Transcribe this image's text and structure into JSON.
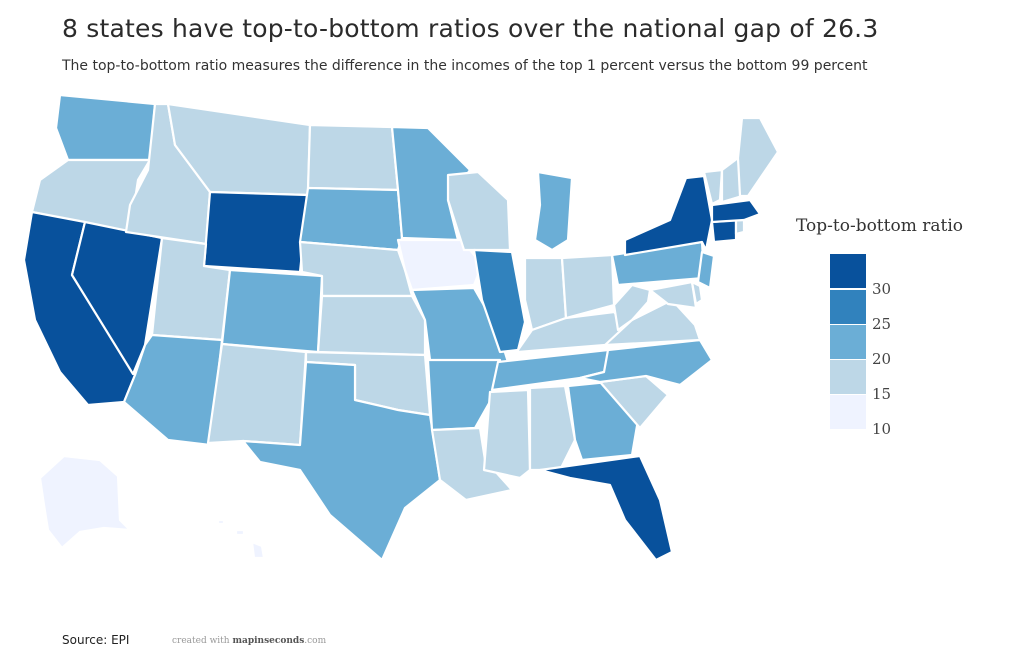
{
  "title": "8 states have top-to-bottom ratios over the national gap of 26.3",
  "subtitle": "The top-to-bottom ratio measures the difference in the incomes of the top 1 percent versus the bottom 99 percent",
  "legend": {
    "title": "Top-to-bottom ratio",
    "ticks": [
      "30",
      "25",
      "20",
      "15",
      "10"
    ],
    "colors": [
      "#08519c",
      "#3182bd",
      "#6baed6",
      "#bdd7e7",
      "#eff3ff"
    ]
  },
  "colors": {
    "c10": "#eff3ff",
    "c15": "#bdd7e7",
    "c20": "#6baed6",
    "c25": "#3182bd",
    "c30": "#08519c"
  },
  "states": [
    {
      "name": "Washington",
      "class": 20
    },
    {
      "name": "Oregon",
      "class": 15
    },
    {
      "name": "California",
      "class": 30
    },
    {
      "name": "Nevada",
      "class": 30
    },
    {
      "name": "Idaho",
      "class": 15
    },
    {
      "name": "Montana",
      "class": 15
    },
    {
      "name": "Wyoming",
      "class": 30
    },
    {
      "name": "Utah",
      "class": 15
    },
    {
      "name": "Arizona",
      "class": 20
    },
    {
      "name": "Colorado",
      "class": 20
    },
    {
      "name": "New Mexico",
      "class": 15
    },
    {
      "name": "North Dakota",
      "class": 15
    },
    {
      "name": "South Dakota",
      "class": 20
    },
    {
      "name": "Nebraska",
      "class": 15
    },
    {
      "name": "Kansas",
      "class": 15
    },
    {
      "name": "Oklahoma",
      "class": 15
    },
    {
      "name": "Texas",
      "class": 20
    },
    {
      "name": "Minnesota",
      "class": 20
    },
    {
      "name": "Iowa",
      "class": 10
    },
    {
      "name": "Missouri",
      "class": 20
    },
    {
      "name": "Arkansas",
      "class": 20
    },
    {
      "name": "Louisiana",
      "class": 15
    },
    {
      "name": "Wisconsin",
      "class": 15
    },
    {
      "name": "Illinois",
      "class": 25
    },
    {
      "name": "Michigan",
      "class": 20
    },
    {
      "name": "Indiana",
      "class": 15
    },
    {
      "name": "Ohio",
      "class": 15
    },
    {
      "name": "Kentucky",
      "class": 15
    },
    {
      "name": "Tennessee",
      "class": 20
    },
    {
      "name": "Mississippi",
      "class": 15
    },
    {
      "name": "Alabama",
      "class": 15
    },
    {
      "name": "Georgia",
      "class": 20
    },
    {
      "name": "Florida",
      "class": 30
    },
    {
      "name": "South Carolina",
      "class": 15
    },
    {
      "name": "North Carolina",
      "class": 20
    },
    {
      "name": "Virginia",
      "class": 15
    },
    {
      "name": "West Virginia",
      "class": 15
    },
    {
      "name": "Pennsylvania",
      "class": 20
    },
    {
      "name": "New York",
      "class": 30
    },
    {
      "name": "New Jersey",
      "class": 20
    },
    {
      "name": "Maryland",
      "class": 15
    },
    {
      "name": "Delaware",
      "class": 15
    },
    {
      "name": "Connecticut",
      "class": 30
    },
    {
      "name": "Massachusetts",
      "class": 30
    },
    {
      "name": "Rhode Island",
      "class": 15
    },
    {
      "name": "Vermont",
      "class": 15
    },
    {
      "name": "New Hampshire",
      "class": 15
    },
    {
      "name": "Maine",
      "class": 15
    },
    {
      "name": "Alaska",
      "class": 10
    },
    {
      "name": "Hawaii",
      "class": 10
    }
  ],
  "source": "Source: EPI",
  "credit": {
    "prefix": "created with ",
    "brand": "mapinseconds",
    "suffix": ".com"
  }
}
